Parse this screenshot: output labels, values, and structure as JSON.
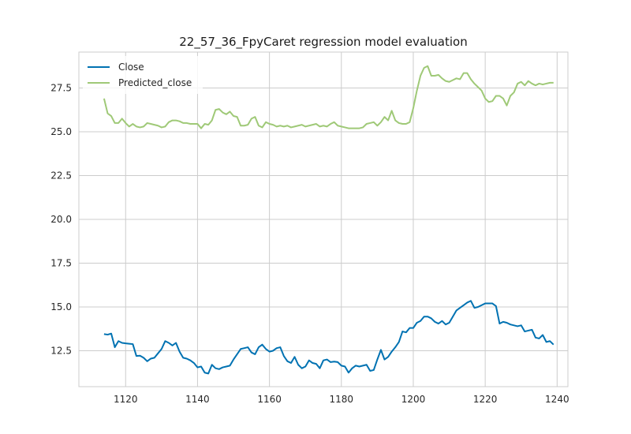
{
  "chart_data": {
    "type": "line",
    "title": "22_57_36_FpyCaret regression model evaluation",
    "xlabel": "",
    "ylabel": "",
    "xlim": [
      1107,
      1243
    ],
    "ylim": [
      10.45,
      29.55
    ],
    "xticks": [
      1120,
      1140,
      1160,
      1180,
      1200,
      1220,
      1240
    ],
    "yticks": [
      12.5,
      15.0,
      17.5,
      20.0,
      22.5,
      25.0,
      27.5
    ],
    "ytick_labels": [
      "12.5",
      "15.0",
      "17.5",
      "20.0",
      "22.5",
      "25.0",
      "27.5"
    ],
    "grid": true,
    "legend": "upper-left",
    "x_start": 1114,
    "series": [
      {
        "name": "Close",
        "color": "#0072b2",
        "values": [
          13.45,
          13.42,
          13.48,
          12.7,
          13.05,
          12.95,
          12.92,
          12.9,
          12.88,
          12.2,
          12.22,
          12.1,
          11.9,
          12.05,
          12.1,
          12.35,
          12.6,
          13.05,
          12.95,
          12.8,
          12.95,
          12.45,
          12.1,
          12.05,
          11.95,
          11.8,
          11.55,
          11.6,
          11.25,
          11.2,
          11.7,
          11.5,
          11.45,
          11.55,
          11.6,
          11.65,
          12.0,
          12.3,
          12.6,
          12.65,
          12.7,
          12.4,
          12.3,
          12.7,
          12.85,
          12.6,
          12.45,
          12.5,
          12.65,
          12.7,
          12.2,
          11.9,
          11.8,
          12.15,
          11.7,
          11.5,
          11.6,
          11.95,
          11.8,
          11.75,
          11.5,
          11.95,
          12.0,
          11.85,
          11.88,
          11.85,
          11.65,
          11.6,
          11.25,
          11.5,
          11.65,
          11.6,
          11.65,
          11.7,
          11.35,
          11.4,
          12.0,
          12.55,
          12.0,
          12.15,
          12.45,
          12.7,
          13.0,
          13.6,
          13.55,
          13.8,
          13.8,
          14.1,
          14.2,
          14.45,
          14.45,
          14.35,
          14.15,
          14.05,
          14.2,
          14.0,
          14.1,
          14.45,
          14.8,
          14.95,
          15.1,
          15.25,
          15.35,
          14.95,
          15.0,
          15.1,
          15.2,
          15.2,
          15.2,
          15.05,
          14.05,
          14.15,
          14.1,
          14.0,
          13.95,
          13.9,
          13.95,
          13.6,
          13.65,
          13.7,
          13.25,
          13.2,
          13.4,
          13.0,
          13.05,
          12.85
        ]
      },
      {
        "name": "Predicted_close",
        "color": "#9fc977",
        "values": [
          26.9,
          26.05,
          25.9,
          25.5,
          25.5,
          25.75,
          25.5,
          25.3,
          25.45,
          25.3,
          25.25,
          25.3,
          25.5,
          25.45,
          25.4,
          25.35,
          25.25,
          25.3,
          25.55,
          25.65,
          25.65,
          25.6,
          25.5,
          25.5,
          25.45,
          25.45,
          25.45,
          25.2,
          25.45,
          25.4,
          25.65,
          26.25,
          26.3,
          26.1,
          26.0,
          26.15,
          25.9,
          25.85,
          25.35,
          25.35,
          25.4,
          25.75,
          25.85,
          25.35,
          25.25,
          25.55,
          25.45,
          25.4,
          25.3,
          25.35,
          25.3,
          25.35,
          25.25,
          25.3,
          25.35,
          25.4,
          25.3,
          25.35,
          25.4,
          25.45,
          25.3,
          25.35,
          25.3,
          25.45,
          25.55,
          25.35,
          25.3,
          25.25,
          25.2,
          25.2,
          25.2,
          25.2,
          25.25,
          25.45,
          25.5,
          25.55,
          25.35,
          25.55,
          25.85,
          25.65,
          26.2,
          25.65,
          25.5,
          25.45,
          25.45,
          25.55,
          26.35,
          27.35,
          28.2,
          28.65,
          28.75,
          28.2,
          28.2,
          28.25,
          28.05,
          27.9,
          27.85,
          27.95,
          28.05,
          28.0,
          28.35,
          28.35,
          28.0,
          27.75,
          27.55,
          27.35,
          26.9,
          26.7,
          26.75,
          27.05,
          27.05,
          26.9,
          26.5,
          27.05,
          27.25,
          27.75,
          27.85,
          27.65,
          27.9,
          27.75,
          27.65,
          27.75,
          27.7,
          27.75,
          27.8,
          27.8
        ]
      }
    ]
  }
}
